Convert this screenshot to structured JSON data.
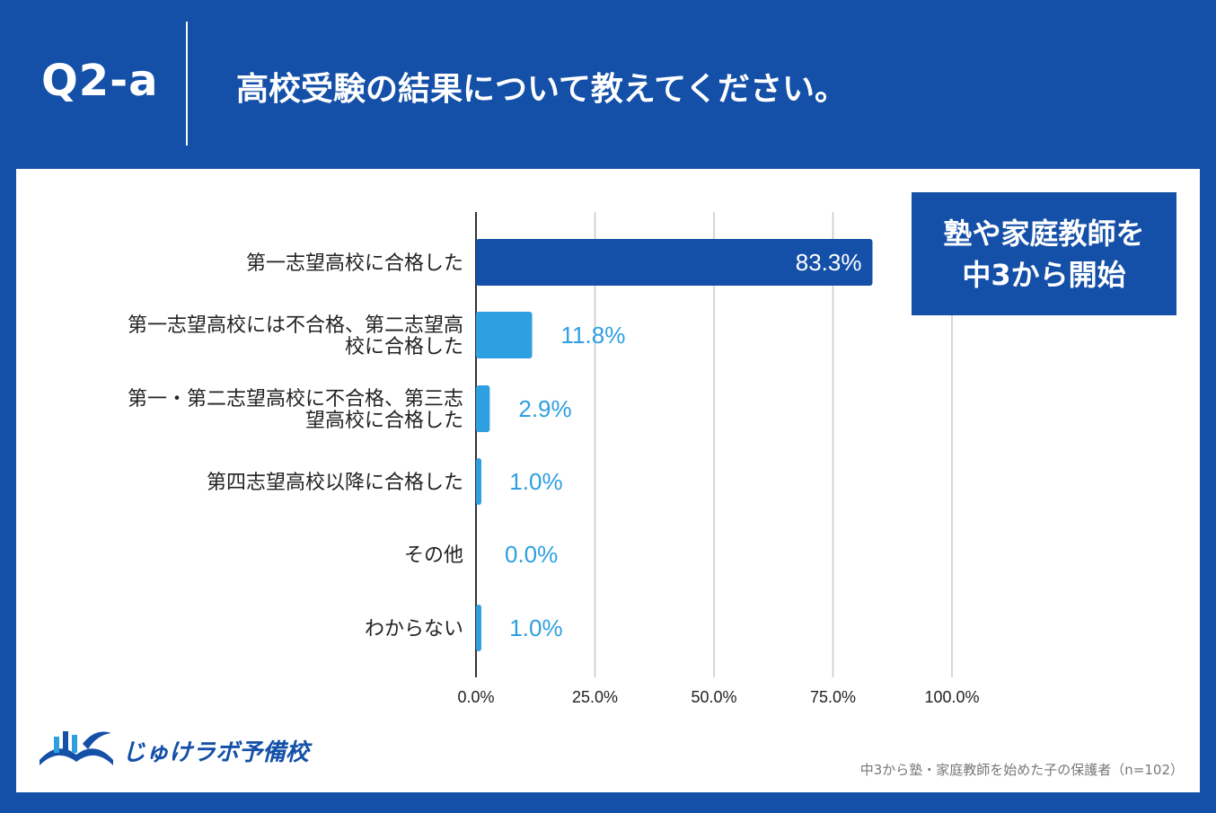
{
  "header": {
    "question_id": "Q2-a",
    "question": "高校受験の結果について教えてください。"
  },
  "badge": {
    "line1": "塾や家庭教師を",
    "line2": "中3から開始"
  },
  "brand": {
    "name": "じゅけラボ予備校",
    "icon": "open-book-logo-icon"
  },
  "note": "中3から塾・家庭教師を始めた子の保護者（n=102）",
  "colors": {
    "background": "#1450a8",
    "primary_bar": "#1450a8",
    "secondary_bar": "#2e9fe0",
    "value_label": "#2e9fe0"
  },
  "chart_data": {
    "type": "bar",
    "orientation": "horizontal",
    "categories": [
      [
        "第一志望高校に合格した"
      ],
      [
        "第一志望高校には不合格、第二志望高",
        "校に合格した"
      ],
      [
        "第一・第二志望高校に不合格、第三志",
        "望高校に合格した"
      ],
      [
        "第四志望高校以降に合格した"
      ],
      [
        "その他"
      ],
      [
        "わからない"
      ]
    ],
    "values": [
      83.3,
      11.8,
      2.9,
      1.0,
      0.0,
      1.0
    ],
    "value_labels": [
      "83.3%",
      "11.8%",
      "2.9%",
      "1.0%",
      "0.0%",
      "1.0%"
    ],
    "xlim": [
      0,
      100
    ],
    "xticks": [
      0,
      25,
      50,
      75,
      100
    ],
    "xtick_labels": [
      "0.0%",
      "25.0%",
      "50.0%",
      "75.0%",
      "100.0%"
    ],
    "grid": true
  }
}
